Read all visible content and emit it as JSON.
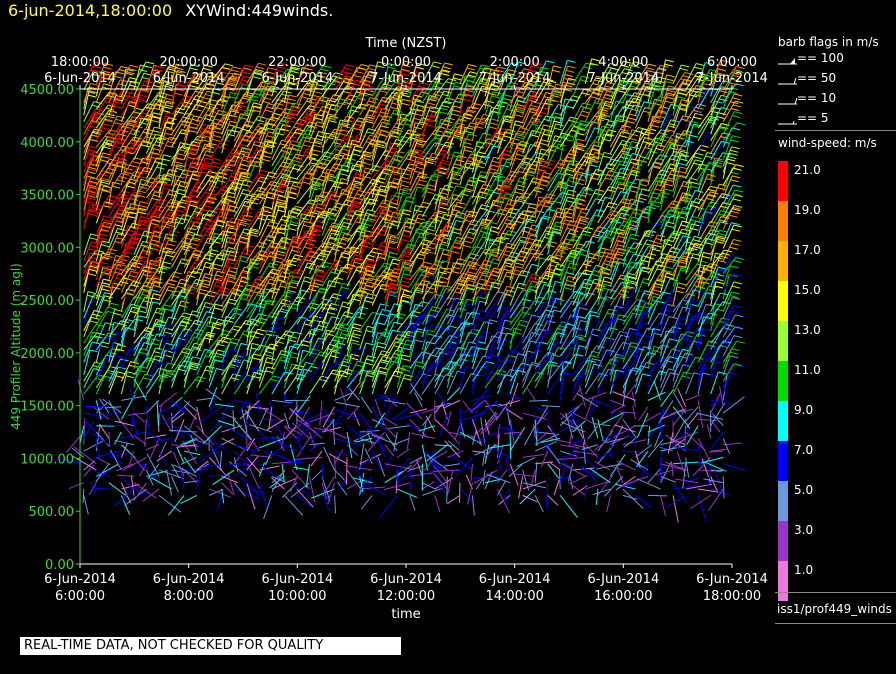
{
  "header": {
    "timestamp": "6-jun-2014,18:00:00",
    "product": "XYWind:449winds."
  },
  "chart_data": {
    "type": "scatter",
    "subtype": "wind-barb time-height profile",
    "x_top_label": "Time (NZST)",
    "x_top_ticks": [
      [
        "18:00:00",
        "6-Jun-2014"
      ],
      [
        "20:00:00",
        "6-Jun-2014"
      ],
      [
        "22:00:00",
        "6-Jun-2014"
      ],
      [
        "0:00:00",
        "7-Jun-2014"
      ],
      [
        "2:00:00",
        "7-Jun-2014"
      ],
      [
        "4:00:00",
        "7-Jun-2014"
      ],
      [
        "6:00:00",
        "7-Jun-2014"
      ]
    ],
    "x_bottom_label": "time",
    "x_bottom_ticks": [
      [
        "6-Jun-2014",
        "6:00:00"
      ],
      [
        "6-Jun-2014",
        "8:00:00"
      ],
      [
        "6-Jun-2014",
        "10:00:00"
      ],
      [
        "6-Jun-2014",
        "12:00:00"
      ],
      [
        "6-Jun-2014",
        "14:00:00"
      ],
      [
        "6-Jun-2014",
        "16:00:00"
      ],
      [
        "6-Jun-2014",
        "18:00:00"
      ]
    ],
    "xlim_hours_utc": [
      6,
      18
    ],
    "ylabel": "449 Profiler Altitude (m agl)",
    "yticks": [
      "0.00",
      "500.00",
      "1000.00",
      "1500.00",
      "2000.00",
      "2500.00",
      "3000.00",
      "3500.00",
      "4000.00",
      "4500.00"
    ],
    "ylim": [
      0,
      4500
    ],
    "data_altitude_range": [
      650,
      4550
    ],
    "speed_layers": [
      {
        "altitude_range": [
          650,
          1600
        ],
        "speed_range": [
          1,
          9
        ],
        "description": "light and variable"
      },
      {
        "altitude_range": [
          1600,
          2400
        ],
        "speed_range": [
          7,
          15
        ]
      },
      {
        "altitude_range": [
          2400,
          4550
        ],
        "speed_range": [
          13,
          23
        ]
      }
    ]
  },
  "legend": {
    "barb_title": "barb flags in m/s",
    "barbs": [
      "== 100",
      "== 50",
      "== 10",
      "== 5"
    ],
    "speed_title": "wind-speed: m/s",
    "colors": [
      {
        "label": "21.0",
        "color": "#ff0000"
      },
      {
        "label": "19.0",
        "color": "#ff8000"
      },
      {
        "label": "17.0",
        "color": "#ffb000"
      },
      {
        "label": "15.0",
        "color": "#ffff00"
      },
      {
        "label": "13.0",
        "color": "#99ff33"
      },
      {
        "label": "11.0",
        "color": "#00dd00"
      },
      {
        "label": "9.0",
        "color": "#00ffff"
      },
      {
        "label": "7.0",
        "color": "#0000ff"
      },
      {
        "label": "5.0",
        "color": "#6699dd"
      },
      {
        "label": "3.0",
        "color": "#9933cc"
      },
      {
        "label": "1.0",
        "color": "#ee77dd"
      }
    ],
    "source": "iss1/prof449_winds"
  },
  "footer": {
    "quality_note": "REAL-TIME DATA, NOT CHECKED FOR QUALITY"
  },
  "colors": {
    "axis": "#ffffff",
    "y_axis_text": "#33dd33",
    "timestamp": "#ffff33"
  }
}
